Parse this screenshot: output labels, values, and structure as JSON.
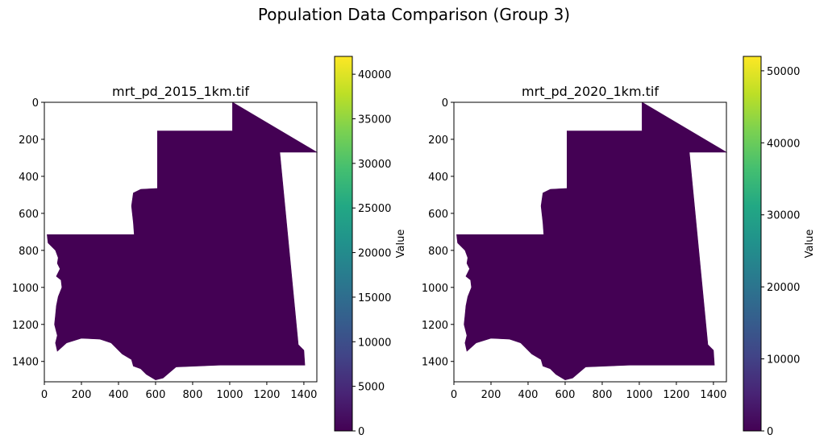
{
  "figure": {
    "title": "Population Data Comparison (Group 3)"
  },
  "chart_data": [
    {
      "type": "heatmap",
      "title": "mrt_pd_2015_1km.tif",
      "xlabel": "",
      "ylabel": "",
      "xlim": [
        0,
        1470
      ],
      "ylim": [
        1510,
        0
      ],
      "x_ticks": [
        0,
        200,
        400,
        600,
        800,
        1000,
        1200,
        1400
      ],
      "y_ticks": [
        0,
        200,
        400,
        600,
        800,
        1000,
        1200,
        1400
      ],
      "colormap": "viridis",
      "fill_color": "#440154",
      "colorbar": {
        "label": "Value",
        "min": 0,
        "max": 42000,
        "ticks": [
          0,
          5000,
          10000,
          15000,
          20000,
          25000,
          30000,
          35000,
          40000
        ]
      },
      "grid": false
    },
    {
      "type": "heatmap",
      "title": "mrt_pd_2020_1km.tif",
      "xlabel": "",
      "ylabel": "",
      "xlim": [
        0,
        1470
      ],
      "ylim": [
        1510,
        0
      ],
      "x_ticks": [
        0,
        200,
        400,
        600,
        800,
        1000,
        1200,
        1400
      ],
      "y_ticks": [
        0,
        200,
        400,
        600,
        800,
        1000,
        1200,
        1400
      ],
      "colormap": "viridis",
      "fill_color": "#440154",
      "colorbar": {
        "label": "Value",
        "min": 0,
        "max": 52000,
        "ticks": [
          0,
          10000,
          20000,
          30000,
          40000,
          50000
        ]
      },
      "grid": false
    }
  ]
}
